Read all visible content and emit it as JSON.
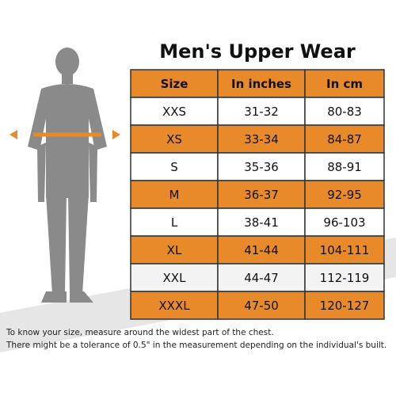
{
  "header": {
    "title": "Men's Upper Wear"
  },
  "table": {
    "columns": [
      "Size",
      "In inches",
      "In cm"
    ],
    "rows": [
      [
        "XXS",
        "31-32",
        "80-83"
      ],
      [
        "XS",
        "33-34",
        "84-87"
      ],
      [
        "S",
        "35-36",
        "88-91"
      ],
      [
        "M",
        "36-37",
        "92-95"
      ],
      [
        "L",
        "38-41",
        "96-103"
      ],
      [
        "XL",
        "41-44",
        "104-111"
      ],
      [
        "XXL",
        "44-47",
        "112-119"
      ],
      [
        "XXXL",
        "47-50",
        "120-127"
      ]
    ]
  },
  "notes": [
    "To know your size, measure around the widest part of the chest.",
    "There might be a tolerance of 0.5\" in the measurement depending on the individual's built."
  ]
}
